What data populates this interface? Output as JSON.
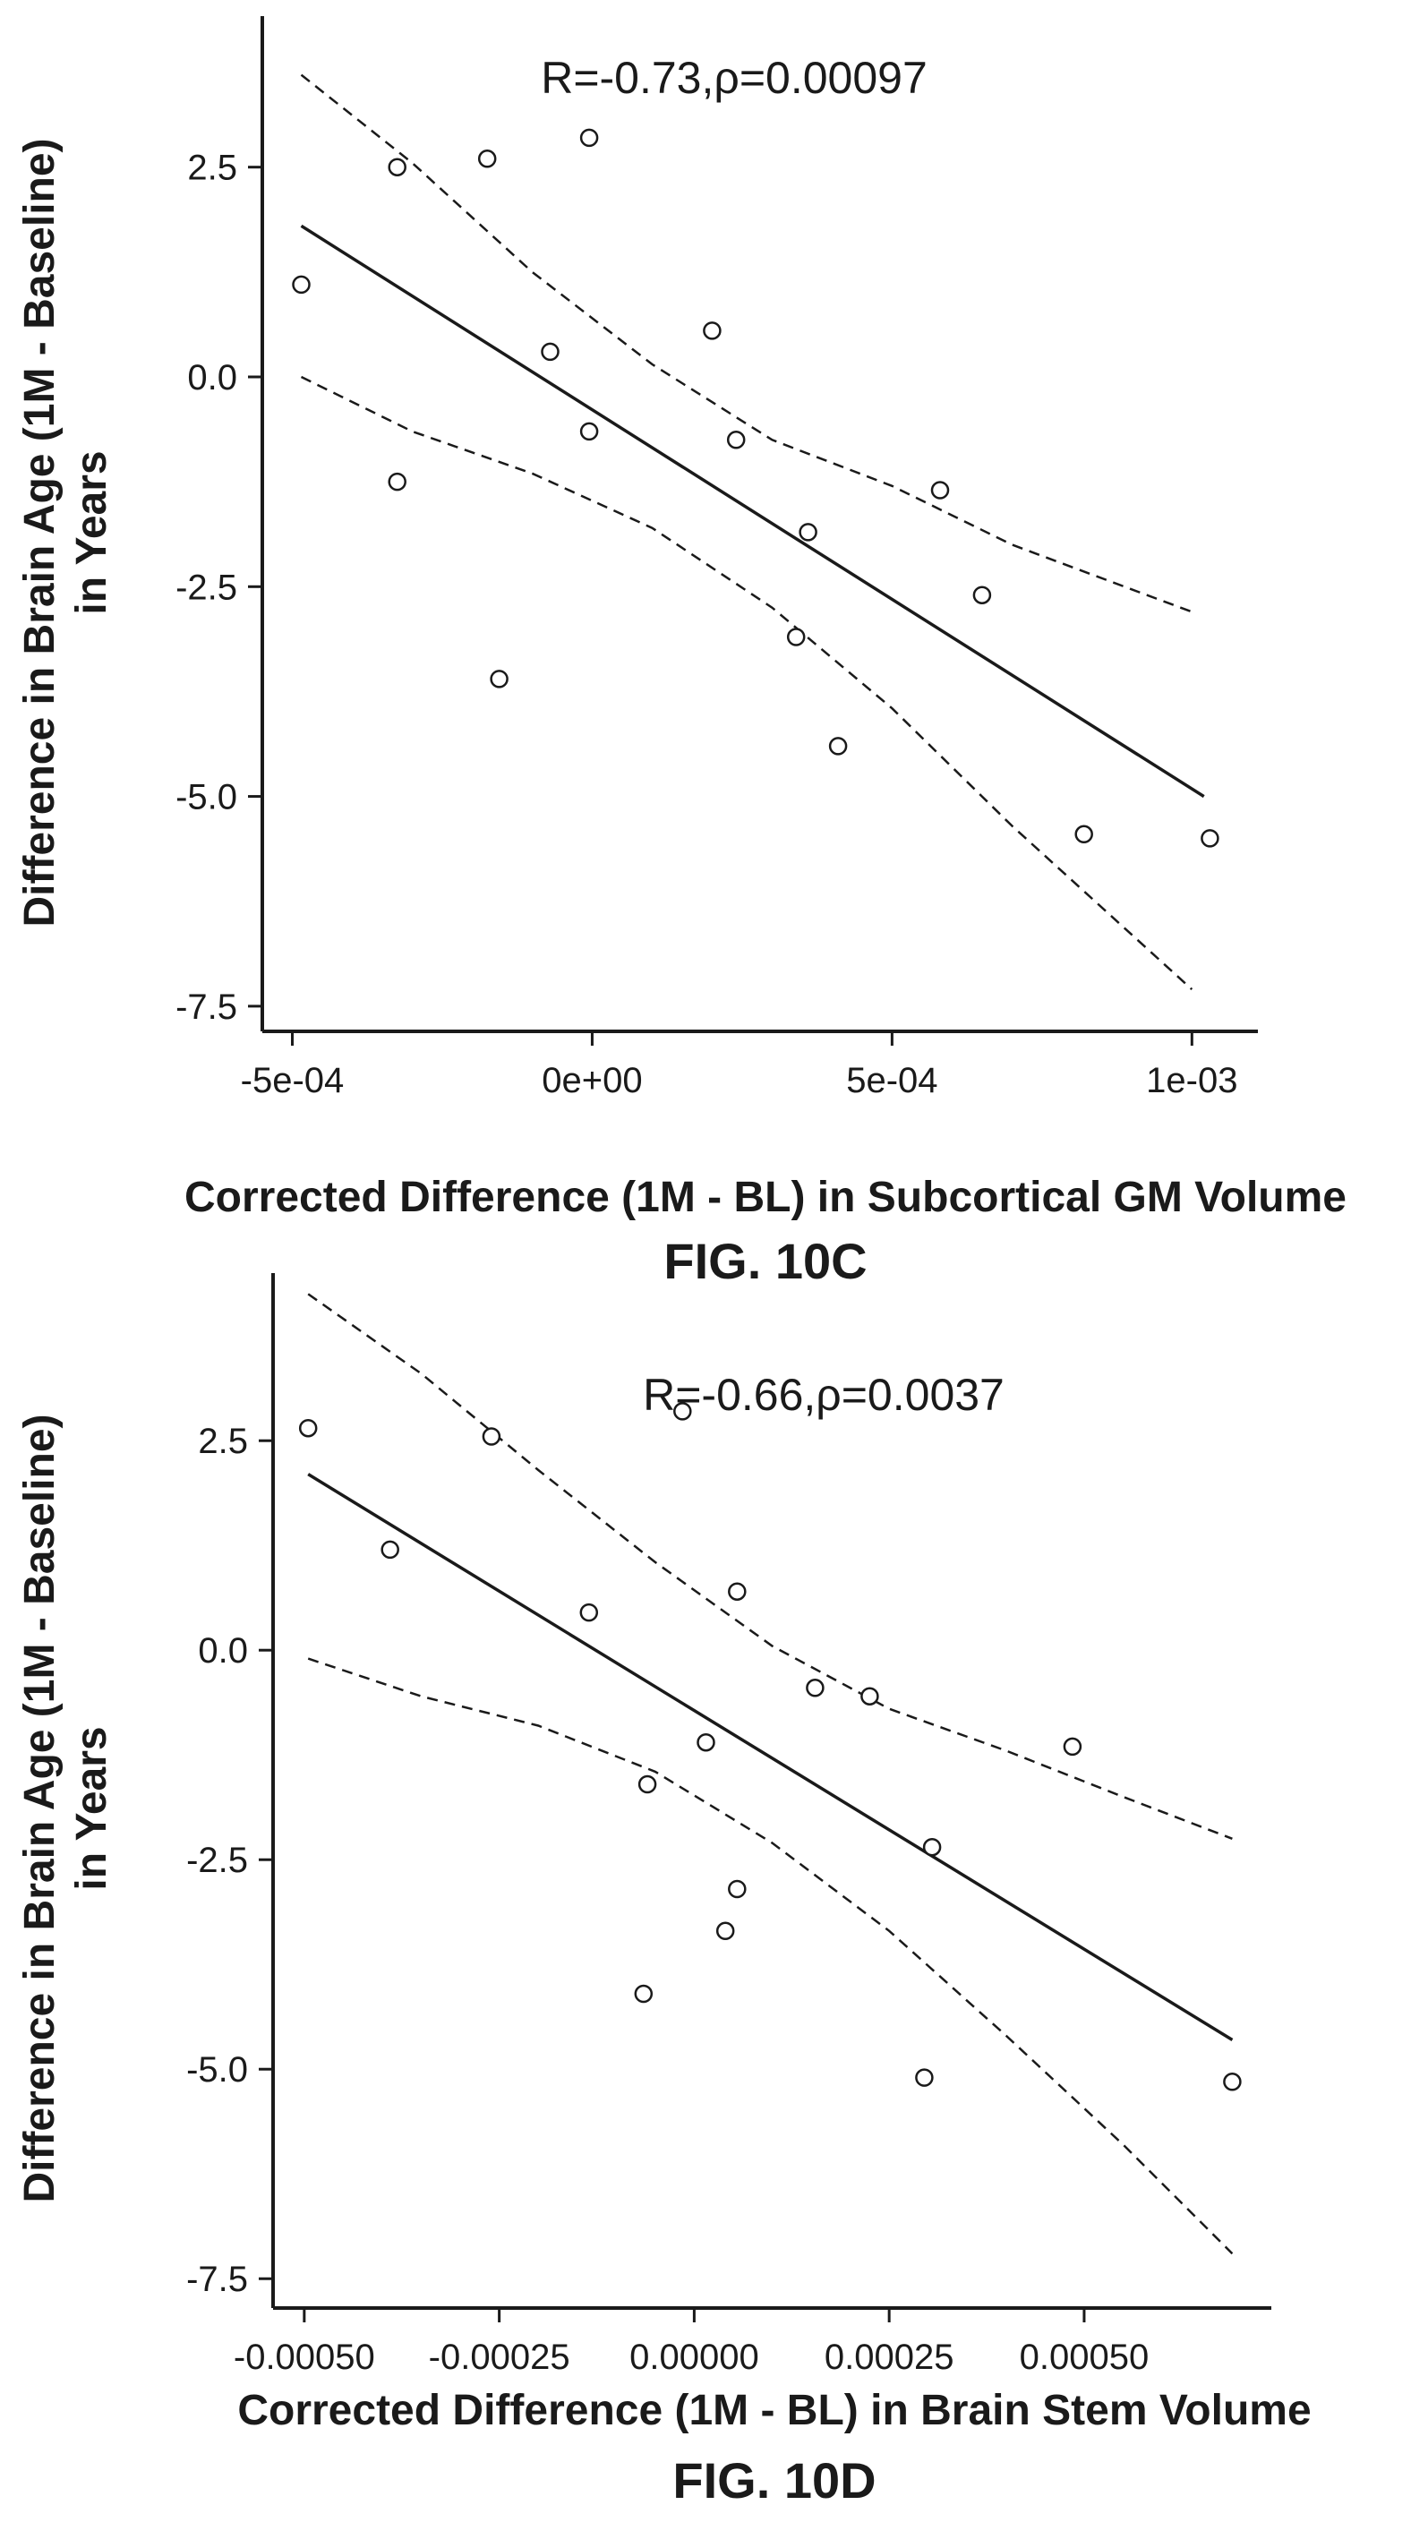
{
  "chart_data": [
    {
      "type": "scatter",
      "annotation": "R=-0.73,ρ=0.00097",
      "xlabel": "Corrected Difference (1M - BL) in Subcortical GM Volume",
      "ylabel_line1": "Difference in Brain Age (1M - Baseline)",
      "ylabel_line2": "in Years",
      "figure_label": "FIG. 10C",
      "xlim": [
        -0.00055,
        0.00111
      ],
      "ylim": [
        -7.8,
        4.3
      ],
      "x_ticks": [
        {
          "value": -0.0005,
          "label": "-5e-04"
        },
        {
          "value": 0,
          "label": "0e+00"
        },
        {
          "value": 0.0005,
          "label": "5e-04"
        },
        {
          "value": 0.001,
          "label": "1e-03"
        }
      ],
      "y_ticks": [
        {
          "value": 2.5,
          "label": "2.5"
        },
        {
          "value": 0,
          "label": "0.0"
        },
        {
          "value": -2.5,
          "label": "-2.5"
        },
        {
          "value": -5,
          "label": "-5.0"
        },
        {
          "value": -7.5,
          "label": "-7.5"
        }
      ],
      "points": [
        {
          "x": -0.000485,
          "y": 1.1
        },
        {
          "x": -0.000325,
          "y": 2.5
        },
        {
          "x": -0.000325,
          "y": -1.25
        },
        {
          "x": -0.000175,
          "y": 2.6
        },
        {
          "x": -0.000155,
          "y": -3.6
        },
        {
          "x": -7e-05,
          "y": 0.3
        },
        {
          "x": -5e-06,
          "y": 2.85
        },
        {
          "x": -5e-06,
          "y": -0.65
        },
        {
          "x": 0.0002,
          "y": 0.55
        },
        {
          "x": 0.00024,
          "y": -0.75
        },
        {
          "x": 0.00036,
          "y": -1.85
        },
        {
          "x": 0.00034,
          "y": -3.1
        },
        {
          "x": 0.00041,
          "y": -4.4
        },
        {
          "x": 0.00058,
          "y": -1.35
        },
        {
          "x": 0.00065,
          "y": -2.6
        },
        {
          "x": 0.00082,
          "y": -5.45
        },
        {
          "x": 0.00103,
          "y": -5.5
        }
      ],
      "fit_line": [
        [
          -0.000485,
          1.8
        ],
        [
          0.00102,
          -5.0
        ]
      ],
      "ci_upper": [
        [
          -0.000485,
          3.6
        ],
        [
          -0.0003,
          2.55
        ],
        [
          -0.0001,
          1.25
        ],
        [
          0.0001,
          0.15
        ],
        [
          0.0003,
          -0.75
        ],
        [
          0.0005,
          -1.3
        ],
        [
          0.0007,
          -2.0
        ],
        [
          0.001,
          -2.8
        ]
      ],
      "ci_lower": [
        [
          -0.000485,
          0.0
        ],
        [
          -0.0003,
          -0.65
        ],
        [
          -0.0001,
          -1.15
        ],
        [
          0.0001,
          -1.8
        ],
        [
          0.0003,
          -2.75
        ],
        [
          0.0005,
          -3.95
        ],
        [
          0.0007,
          -5.35
        ],
        [
          0.001,
          -7.3
        ]
      ]
    },
    {
      "type": "scatter",
      "annotation": "R=-0.66,ρ=0.0037",
      "xlabel": "Corrected Difference (1M - BL) in Brain Stem Volume",
      "ylabel_line1": "Difference in Brain Age (1M - Baseline)",
      "ylabel_line2": "in Years",
      "figure_label": "FIG. 10D",
      "xlim": [
        -0.00054,
        0.00074
      ],
      "ylim": [
        -7.85,
        4.5
      ],
      "x_ticks": [
        {
          "value": -0.0005,
          "label": "-0.00050"
        },
        {
          "value": -0.00025,
          "label": "-0.00025"
        },
        {
          "value": 0,
          "label": "0.00000"
        },
        {
          "value": 0.00025,
          "label": "0.00025"
        },
        {
          "value": 0.0005,
          "label": "0.00050"
        }
      ],
      "y_ticks": [
        {
          "value": 2.5,
          "label": "2.5"
        },
        {
          "value": 0,
          "label": "0.0"
        },
        {
          "value": -2.5,
          "label": "-2.5"
        },
        {
          "value": -5,
          "label": "-5.0"
        },
        {
          "value": -7.5,
          "label": "-7.5"
        }
      ],
      "points": [
        {
          "x": -0.000495,
          "y": 2.65
        },
        {
          "x": -0.00039,
          "y": 1.2
        },
        {
          "x": -0.00026,
          "y": 2.55
        },
        {
          "x": -0.000135,
          "y": 0.45
        },
        {
          "x": -1.5e-05,
          "y": 2.85
        },
        {
          "x": -6.5e-05,
          "y": -4.1
        },
        {
          "x": -6e-05,
          "y": -1.6
        },
        {
          "x": 1.5e-05,
          "y": -1.1
        },
        {
          "x": 5.5e-05,
          "y": 0.7
        },
        {
          "x": 5.5e-05,
          "y": -2.85
        },
        {
          "x": 4e-05,
          "y": -3.35
        },
        {
          "x": 0.000155,
          "y": -0.45
        },
        {
          "x": 0.000225,
          "y": -0.55
        },
        {
          "x": 0.000305,
          "y": -2.35
        },
        {
          "x": 0.000295,
          "y": -5.1
        },
        {
          "x": 0.000485,
          "y": -1.15
        },
        {
          "x": 0.00069,
          "y": -5.15
        }
      ],
      "fit_line": [
        [
          -0.000495,
          2.1
        ],
        [
          0.00069,
          -4.65
        ]
      ],
      "ci_upper": [
        [
          -0.000495,
          4.25
        ],
        [
          -0.00035,
          3.3
        ],
        [
          -0.0002,
          2.15
        ],
        [
          -5e-05,
          1.05
        ],
        [
          0.0001,
          0.05
        ],
        [
          0.00025,
          -0.7
        ],
        [
          0.0004,
          -1.2
        ],
        [
          0.00055,
          -1.75
        ],
        [
          0.00069,
          -2.25
        ]
      ],
      "ci_lower": [
        [
          -0.000495,
          -0.1
        ],
        [
          -0.00035,
          -0.55
        ],
        [
          -0.0002,
          -0.9
        ],
        [
          -5e-05,
          -1.45
        ],
        [
          0.0001,
          -2.3
        ],
        [
          0.00025,
          -3.35
        ],
        [
          0.0004,
          -4.6
        ],
        [
          0.00055,
          -5.9
        ],
        [
          0.00069,
          -7.2
        ]
      ]
    }
  ]
}
